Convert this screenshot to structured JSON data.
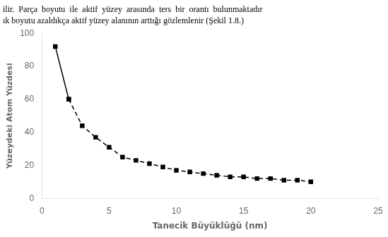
{
  "chart_data": {
    "type": "line",
    "annotations": [
      "ilir.  Parça  boyutu  ile  aktif  yüzey  arasında  ters  bir  orantı  bulunmaktadır",
      "ık boyutu azaldıkça aktif yüzey alanının arttığı gözlemlenir (Şekil 1.8.)"
    ],
    "x_label": "Tanecik Büyüklüğü (nm)",
    "y_label": "Yüzeydeki Atom Yüzdesi",
    "series": [
      {
        "x": [
          1,
          2
        ],
        "values": [
          92,
          60
        ],
        "color": "#000000",
        "marker": "square",
        "line_style": "solid"
      },
      {
        "x": [
          2,
          3,
          4,
          5,
          6,
          7,
          8,
          9,
          10,
          11,
          12,
          13,
          14,
          15,
          16,
          17,
          18,
          19,
          20
        ],
        "values": [
          60,
          44,
          37,
          31,
          25,
          23,
          21,
          19,
          17,
          16,
          15,
          14,
          13,
          13,
          12,
          12,
          11,
          11,
          10
        ],
        "color": "#000000",
        "marker": "square",
        "line_style": "dashed"
      }
    ],
    "xlim": [
      0,
      25
    ],
    "xticks": [
      0,
      5,
      10,
      15,
      20,
      25
    ],
    "ylim": [
      0,
      100
    ],
    "yticks": [
      0,
      20,
      40,
      60,
      80,
      100
    ],
    "grid": false
  }
}
